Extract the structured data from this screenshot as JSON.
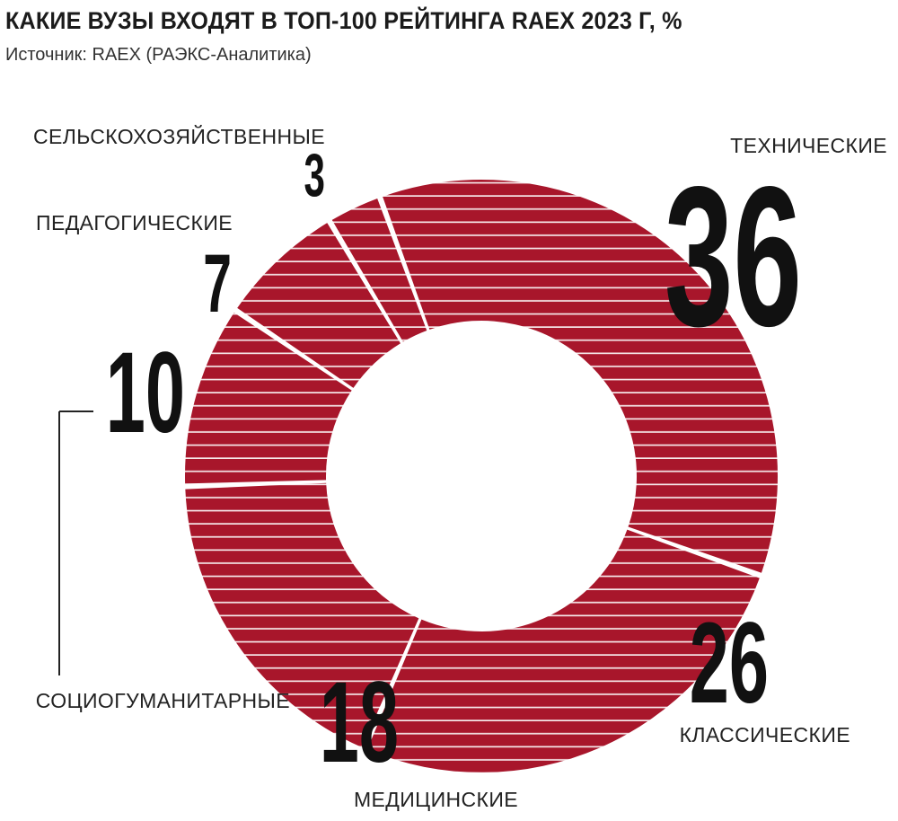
{
  "header": {
    "title": "КАКИЕ ВУЗЫ ВХОДЯТ В ТОП-100 РЕЙТИНГА RAEX 2023 Г, %",
    "source": "Источник: RAEX (РАЭКС-Аналитика)"
  },
  "colors": {
    "ring": "#a8162b",
    "stripe": "#ffffff",
    "text": "#111111",
    "leader": "#222222"
  },
  "chart_data": {
    "type": "pie",
    "donut": true,
    "title": "КАКИЕ ВУЗЫ ВХОДЯТ В ТОП-100 РЕЙТИНГА RAEX 2023 Г, %",
    "unit": "%",
    "categories": [
      "ТЕХНИЧЕСКИЕ",
      "КЛАССИЧЕСКИЕ",
      "МЕДИЦИНСКИЕ",
      "СОЦИОГУМАНИТАРНЫЕ",
      "ПЕДАГОГИЧЕСКИЕ",
      "СЕЛЬСКОХОЗЯЙСТВЕННЫЕ"
    ],
    "values": [
      36,
      26,
      18,
      10,
      7,
      3
    ],
    "value_labels": [
      "36",
      "26",
      "18",
      "10",
      "7",
      "3"
    ]
  }
}
